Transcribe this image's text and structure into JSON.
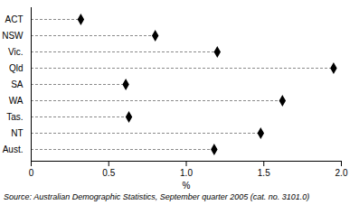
{
  "chart_data": {
    "type": "dot",
    "orientation": "horizontal",
    "categories": [
      "ACT",
      "NSW",
      "Vic.",
      "Qld",
      "SA",
      "WA",
      "Tas.",
      "NT",
      "Aust."
    ],
    "values": [
      0.32,
      0.8,
      1.2,
      1.95,
      0.61,
      1.62,
      0.63,
      1.48,
      1.18
    ],
    "color": "#000000",
    "marker": "diamond",
    "line_style": "dashed",
    "xlabel": "%",
    "xlim": [
      0,
      2
    ],
    "xticks": [
      0,
      0.5,
      {
        "value": 1,
        "label": "1.0"
      },
      1.5,
      {
        "value": 2,
        "label": "2.0"
      }
    ],
    "grid": false,
    "caption": "Source: Australian Demographic Statistics, September quarter 2005 (cat. no. 3101.0)"
  }
}
